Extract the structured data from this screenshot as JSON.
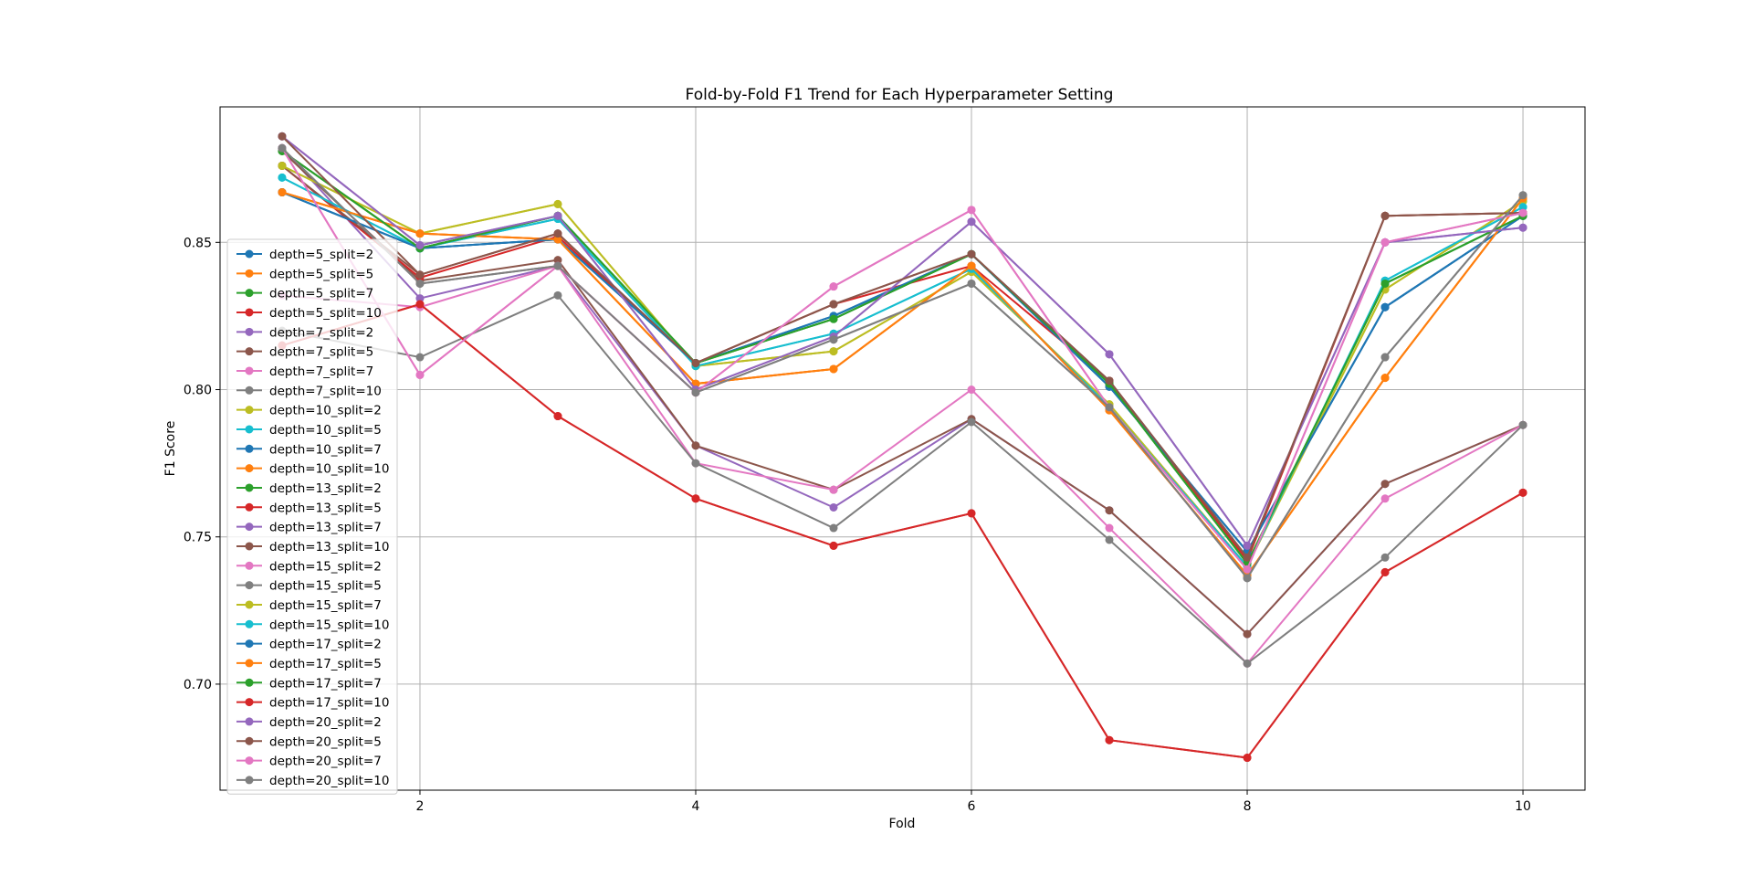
{
  "chart_data": {
    "type": "line",
    "title": "Fold-by-Fold F1 Trend for Each Hyperparameter Setting",
    "xlabel": "Fold",
    "ylabel": "F1 Score",
    "xlim": [
      0.55,
      10.45
    ],
    "ylim": [
      0.664,
      0.896
    ],
    "x": [
      1,
      2,
      3,
      4,
      5,
      6,
      7,
      8,
      9,
      10
    ],
    "xticks": [
      2,
      4,
      6,
      8,
      10
    ],
    "yticks": [
      0.7,
      0.75,
      0.8,
      0.85
    ],
    "ytick_labels": [
      "0.70",
      "0.75",
      "0.80",
      "0.85"
    ],
    "grid": true,
    "legend_position": "left",
    "series": [
      {
        "name": "depth=5_split=2",
        "color": "#1f77b4",
        "values": [
          0.867,
          0.848,
          0.851,
          0.809,
          0.825,
          0.846,
          0.801,
          0.745,
          0.828,
          0.859
        ]
      },
      {
        "name": "depth=5_split=5",
        "color": "#ff7f0e",
        "values": [
          0.867,
          0.853,
          0.851,
          0.802,
          0.807,
          0.842,
          0.793,
          0.737,
          0.804,
          0.865
        ]
      },
      {
        "name": "depth=5_split=7",
        "color": "#2ca02c",
        "values": [
          0.881,
          0.848,
          0.859,
          0.809,
          0.824,
          0.846,
          0.802,
          0.741,
          0.836,
          0.859
        ]
      },
      {
        "name": "depth=5_split=10",
        "color": "#d62728",
        "values": [
          0.815,
          0.829,
          0.791,
          0.763,
          0.747,
          0.758,
          0.681,
          0.675,
          0.738,
          0.765
        ]
      },
      {
        "name": "depth=7_split=2",
        "color": "#9467bd",
        "values": [
          0.882,
          0.831,
          0.842,
          0.781,
          0.76,
          0.79,
          0.759,
          0.717,
          0.768,
          0.788
        ]
      },
      {
        "name": "depth=7_split=5",
        "color": "#8c564b",
        "values": [
          0.881,
          0.837,
          0.844,
          0.781,
          0.766,
          0.79,
          0.759,
          0.717,
          0.768,
          0.788
        ]
      },
      {
        "name": "depth=7_split=7",
        "color": "#e377c2",
        "values": [
          0.832,
          0.828,
          0.842,
          0.775,
          0.766,
          0.8,
          0.753,
          0.707,
          0.763,
          0.788
        ]
      },
      {
        "name": "depth=7_split=10",
        "color": "#7f7f7f",
        "values": [
          0.82,
          0.811,
          0.832,
          0.775,
          0.753,
          0.789,
          0.749,
          0.707,
          0.743,
          0.788
        ]
      },
      {
        "name": "depth=10_split=2",
        "color": "#bcbd22",
        "values": [
          0.876,
          0.853,
          0.863,
          0.808,
          0.813,
          0.84,
          0.795,
          0.74,
          0.834,
          0.864
        ]
      },
      {
        "name": "depth=10_split=5",
        "color": "#17becf",
        "values": [
          0.872,
          0.848,
          0.858,
          0.808,
          0.819,
          0.841,
          0.794,
          0.74,
          0.837,
          0.862
        ]
      },
      {
        "name": "depth=10_split=7",
        "color": "#1f77b4",
        "values": [
          0.867,
          0.848,
          0.851,
          0.809,
          0.825,
          0.846,
          0.801,
          0.745,
          0.828,
          0.859
        ]
      },
      {
        "name": "depth=10_split=10",
        "color": "#ff7f0e",
        "values": [
          0.867,
          0.853,
          0.851,
          0.802,
          0.807,
          0.842,
          0.793,
          0.737,
          0.804,
          0.865
        ]
      },
      {
        "name": "depth=13_split=2",
        "color": "#2ca02c",
        "values": [
          0.881,
          0.848,
          0.859,
          0.809,
          0.824,
          0.846,
          0.802,
          0.741,
          0.836,
          0.859
        ]
      },
      {
        "name": "depth=13_split=5",
        "color": "#d62728",
        "values": [
          0.876,
          0.838,
          0.852,
          0.809,
          0.829,
          0.842,
          0.803,
          0.742,
          0.859,
          0.86
        ]
      },
      {
        "name": "depth=13_split=7",
        "color": "#9467bd",
        "values": [
          0.886,
          0.849,
          0.859,
          0.8,
          0.818,
          0.857,
          0.812,
          0.747,
          0.85,
          0.855
        ]
      },
      {
        "name": "depth=13_split=10",
        "color": "#8c564b",
        "values": [
          0.876,
          0.839,
          0.853,
          0.809,
          0.829,
          0.846,
          0.803,
          0.743,
          0.859,
          0.86
        ]
      },
      {
        "name": "depth=15_split=2",
        "color": "#e377c2",
        "values": [
          0.882,
          0.805,
          0.842,
          0.799,
          0.835,
          0.861,
          0.794,
          0.739,
          0.85,
          0.86
        ]
      },
      {
        "name": "depth=15_split=5",
        "color": "#7f7f7f",
        "values": [
          0.882,
          0.836,
          0.842,
          0.799,
          0.817,
          0.836,
          0.794,
          0.736,
          0.811,
          0.866
        ]
      },
      {
        "name": "depth=15_split=7",
        "color": "#bcbd22",
        "values": [
          0.876,
          0.853,
          0.863,
          0.808,
          0.813,
          0.84,
          0.795,
          0.74,
          0.834,
          0.864
        ]
      },
      {
        "name": "depth=15_split=10",
        "color": "#17becf",
        "values": [
          0.872,
          0.848,
          0.858,
          0.808,
          0.819,
          0.841,
          0.794,
          0.74,
          0.837,
          0.862
        ]
      },
      {
        "name": "depth=17_split=2",
        "color": "#1f77b4",
        "values": [
          0.867,
          0.848,
          0.851,
          0.809,
          0.825,
          0.846,
          0.801,
          0.745,
          0.828,
          0.859
        ]
      },
      {
        "name": "depth=17_split=5",
        "color": "#ff7f0e",
        "values": [
          0.867,
          0.853,
          0.851,
          0.802,
          0.807,
          0.842,
          0.793,
          0.737,
          0.804,
          0.865
        ]
      },
      {
        "name": "depth=17_split=7",
        "color": "#2ca02c",
        "values": [
          0.881,
          0.848,
          0.859,
          0.809,
          0.824,
          0.846,
          0.802,
          0.741,
          0.836,
          0.859
        ]
      },
      {
        "name": "depth=17_split=10",
        "color": "#d62728",
        "values": [
          0.815,
          0.829,
          0.791,
          0.763,
          0.747,
          0.758,
          0.681,
          0.675,
          0.738,
          0.765
        ]
      },
      {
        "name": "depth=20_split=2",
        "color": "#9467bd",
        "values": [
          0.886,
          0.849,
          0.859,
          0.8,
          0.818,
          0.857,
          0.812,
          0.747,
          0.85,
          0.855
        ]
      },
      {
        "name": "depth=20_split=5",
        "color": "#8c564b",
        "values": [
          0.886,
          0.839,
          0.853,
          0.809,
          0.829,
          0.846,
          0.803,
          0.743,
          0.859,
          0.86
        ]
      },
      {
        "name": "depth=20_split=7",
        "color": "#e377c2",
        "values": [
          0.882,
          0.805,
          0.842,
          0.799,
          0.835,
          0.861,
          0.794,
          0.739,
          0.85,
          0.86
        ]
      },
      {
        "name": "depth=20_split=10",
        "color": "#7f7f7f",
        "values": [
          0.882,
          0.836,
          0.842,
          0.799,
          0.817,
          0.836,
          0.794,
          0.736,
          0.811,
          0.866
        ]
      }
    ]
  }
}
